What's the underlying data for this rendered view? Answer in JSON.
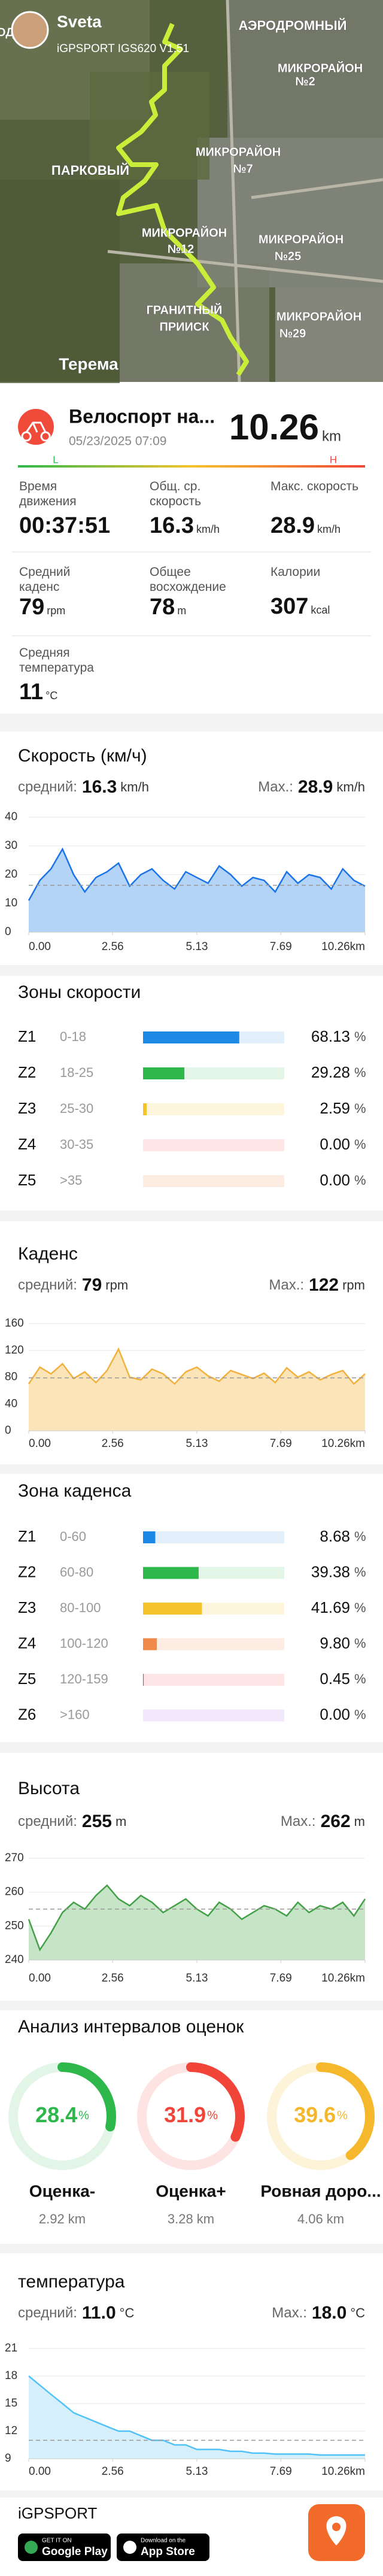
{
  "header": {
    "user": "Sveta",
    "device": "iGPSPORT IGS620 V1.51",
    "map_labels": [
      "ОДА",
      "АЭРОДРОМНЫЙ",
      "МИКРОРАЙОН",
      "№2",
      "ПАРКОВЫЙ",
      "МИКРОРАЙОН",
      "№7",
      "МИКРОРАЙОН",
      "№12",
      "МИКРОРАЙОН",
      "№25",
      "ГРАНИТНЫЙ",
      "ПРИИСК",
      "МИКРОРАЙОН",
      "№29",
      "Терема"
    ]
  },
  "activity": {
    "title": "Велоспорт на...",
    "date": "05/23/2025 07:09",
    "distance": "10.26",
    "distance_unit": "km",
    "scale_low": "L",
    "scale_high": "H"
  },
  "stats": [
    {
      "label": "Время движения",
      "value": "00:37:51",
      "unit": ""
    },
    {
      "label": "Общ. ср. скорость",
      "value": "16.3",
      "unit": "km/h"
    },
    {
      "label": "Макс. скорость",
      "value": "28.9",
      "unit": "km/h"
    },
    {
      "label": "Средний каденс",
      "value": "79",
      "unit": "rpm"
    },
    {
      "label": "Общее восхождение",
      "value": "78",
      "unit": "m"
    },
    {
      "label": "Калории",
      "value": "307",
      "unit": "kcal"
    },
    {
      "label": "Средняя температура",
      "value": "11",
      "unit": "°C"
    }
  ],
  "chart_data": [
    {
      "type": "area",
      "title": "Скорость (км/ч)",
      "color": "#1a73e8",
      "fill": "#b4d4f7",
      "avg_prefix": "средний:",
      "avg": 16.3,
      "avg_unit": "km/h",
      "max_prefix": "Max.:",
      "max": 28.9,
      "max_unit": "km/h",
      "x": [
        0,
        0.34,
        0.68,
        1.03,
        1.37,
        1.71,
        2.05,
        2.39,
        2.74,
        3.08,
        3.42,
        3.76,
        4.1,
        4.45,
        4.79,
        5.13,
        5.47,
        5.81,
        6.16,
        6.5,
        6.84,
        7.18,
        7.52,
        7.87,
        8.21,
        8.55,
        8.89,
        9.23,
        9.58,
        9.92,
        10.26
      ],
      "values": [
        11,
        18,
        22,
        28.9,
        20,
        14,
        19,
        21,
        24,
        16,
        20,
        22,
        18,
        15,
        21,
        19,
        17,
        23,
        20,
        16,
        19,
        18,
        14,
        21,
        17,
        20,
        19,
        15,
        22,
        18,
        16
      ],
      "xlim": [
        0,
        10.26
      ],
      "ylim": [
        0,
        40
      ],
      "yticks": [
        0,
        10,
        20,
        30,
        40
      ],
      "xticks": [
        {
          "value": 0,
          "label": "0.00"
        },
        2.56,
        5.13,
        7.69,
        {
          "value": 10.26,
          "label": "10.26km"
        }
      ]
    },
    {
      "type": "area",
      "title": "Каденс",
      "color": "#f2b03c",
      "fill": "#fbe5b8",
      "avg_prefix": "средний:",
      "avg": 79,
      "avg_unit": "rpm",
      "max_prefix": "Max.:",
      "max": 122,
      "max_unit": "rpm",
      "x": [
        0,
        0.34,
        0.68,
        1.03,
        1.37,
        1.71,
        2.05,
        2.39,
        2.74,
        3.08,
        3.42,
        3.76,
        4.1,
        4.45,
        4.79,
        5.13,
        5.47,
        5.81,
        6.16,
        6.5,
        6.84,
        7.18,
        7.52,
        7.87,
        8.21,
        8.55,
        8.89,
        9.23,
        9.58,
        9.92,
        10.26
      ],
      "values": [
        70,
        95,
        85,
        100,
        78,
        88,
        72,
        90,
        122,
        80,
        76,
        92,
        85,
        70,
        88,
        95,
        82,
        74,
        90,
        84,
        78,
        86,
        72,
        94,
        80,
        88,
        76,
        84,
        90,
        70,
        85
      ],
      "xlim": [
        0,
        10.26
      ],
      "ylim": [
        0,
        160
      ],
      "yticks": [
        0,
        40,
        80,
        120,
        160
      ],
      "xticks": [
        {
          "value": 0,
          "label": "0.00"
        },
        2.56,
        5.13,
        7.69,
        {
          "value": 10.26,
          "label": "10.26km"
        }
      ]
    },
    {
      "type": "area",
      "title": "Высота",
      "color": "#43a047",
      "fill": "#c5e5c6",
      "avg_prefix": "средний:",
      "avg": 255,
      "avg_unit": "m",
      "max_prefix": "Max.:",
      "max": 262,
      "max_unit": "m",
      "x": [
        0,
        0.34,
        0.68,
        1.03,
        1.37,
        1.71,
        2.05,
        2.39,
        2.74,
        3.08,
        3.42,
        3.76,
        4.1,
        4.45,
        4.79,
        5.13,
        5.47,
        5.81,
        6.16,
        6.5,
        6.84,
        7.18,
        7.52,
        7.87,
        8.21,
        8.55,
        8.89,
        9.23,
        9.58,
        9.92,
        10.26
      ],
      "values": [
        252,
        243,
        248,
        254,
        257,
        255,
        259,
        262,
        258,
        256,
        259,
        257,
        254,
        256,
        258,
        255,
        253,
        257,
        255,
        252,
        254,
        256,
        255,
        253,
        257,
        254,
        256,
        255,
        257,
        253,
        258
      ],
      "xlim": [
        0,
        10.26
      ],
      "ylim": [
        240,
        270
      ],
      "yticks": [
        240,
        250,
        260,
        270
      ],
      "xticks": [
        {
          "value": 0,
          "label": "0.00"
        },
        2.56,
        5.13,
        7.69,
        {
          "value": 10.26,
          "label": "10.26km"
        }
      ]
    },
    {
      "type": "area",
      "title": "температура",
      "color": "#4fc3f7",
      "fill": "#d6f0fb",
      "avg_prefix": "средний:",
      "avg": 11,
      "avg_label": "11.0",
      "avg_unit": "°C",
      "max_prefix": "Max.:",
      "max": 18,
      "max_label": "18.0",
      "max_unit": "°C",
      "x": [
        0,
        0.34,
        0.68,
        1.03,
        1.37,
        1.71,
        2.05,
        2.39,
        2.74,
        3.08,
        3.42,
        3.76,
        4.1,
        4.45,
        4.79,
        5.13,
        5.47,
        5.81,
        6.16,
        6.5,
        6.84,
        7.18,
        7.52,
        7.87,
        8.21,
        8.55,
        8.89,
        9.23,
        9.58,
        9.92,
        10.26
      ],
      "values": [
        18,
        17,
        16,
        15,
        14,
        13.5,
        13,
        12.5,
        12,
        12,
        11.5,
        11,
        11,
        10.5,
        10.5,
        10,
        10,
        10,
        9.8,
        9.8,
        9.6,
        9.6,
        9.5,
        9.5,
        9.5,
        9.5,
        9.4,
        9.4,
        9.4,
        9.4,
        9.4
      ],
      "xlim": [
        0,
        10.26
      ],
      "ylim": [
        9,
        21
      ],
      "yticks": [
        9,
        12,
        15,
        18,
        21
      ],
      "xticks": [
        {
          "value": 0,
          "label": "0.00"
        },
        2.56,
        5.13,
        7.69,
        {
          "value": 10.26,
          "label": "10.26km"
        }
      ]
    }
  ],
  "zones": [
    {
      "title": "Зоны скорости",
      "rows": [
        {
          "name": "Z1",
          "range": "0-18",
          "percent": 68.13,
          "percent_label": "68.13",
          "unit": "%",
          "color": "#1e88e5",
          "track": "#e3f0fc"
        },
        {
          "name": "Z2",
          "range": "18-25",
          "percent": 29.28,
          "percent_label": "29.28",
          "unit": "%",
          "color": "#2eb84b",
          "track": "#e3f5e6"
        },
        {
          "name": "Z3",
          "range": "25-30",
          "percent": 2.59,
          "percent_label": "2.59",
          "unit": "%",
          "color": "#f5c32c",
          "track": "#fdf5dc"
        },
        {
          "name": "Z4",
          "range": "30-35",
          "percent": 0,
          "percent_label": "0.00",
          "unit": "%",
          "color": "#f1605a",
          "track": "#fde6e5"
        },
        {
          "name": "Z5",
          "range": ">35",
          "percent": 0,
          "percent_label": "0.00",
          "unit": "%",
          "color": "#f08a4b",
          "track": "#fdece1"
        }
      ]
    },
    {
      "title": "Зона каденса",
      "rows": [
        {
          "name": "Z1",
          "range": "0-60",
          "percent": 8.68,
          "percent_label": "8.68",
          "unit": "%",
          "color": "#1e88e5",
          "track": "#e3f0fc"
        },
        {
          "name": "Z2",
          "range": "60-80",
          "percent": 39.38,
          "percent_label": "39.38",
          "unit": "%",
          "color": "#2eb84b",
          "track": "#e3f5e6"
        },
        {
          "name": "Z3",
          "range": "80-100",
          "percent": 41.69,
          "percent_label": "41.69",
          "unit": "%",
          "color": "#f5c32c",
          "track": "#fdf5dc"
        },
        {
          "name": "Z4",
          "range": "100-120",
          "percent": 9.8,
          "percent_label": "9.80",
          "unit": "%",
          "color": "#f08a4b",
          "track": "#fdece1"
        },
        {
          "name": "Z5",
          "range": "120-159",
          "percent": 0.45,
          "percent_label": "0.45",
          "unit": "%",
          "color": "#e53935",
          "track": "#fde6e5"
        },
        {
          "name": "Z6",
          "range": ">160",
          "percent": 0,
          "percent_label": "0.00",
          "unit": "%",
          "color": "#a86be0",
          "track": "#f1e8fb"
        }
      ]
    }
  ],
  "analysis": {
    "title": "Анализ интервалов оценок",
    "items": [
      {
        "percent": 28.4,
        "unit": "%",
        "label": "Оценка-",
        "distance": "2.92 km",
        "color": "#2eb84b",
        "track": "#e3f5e6"
      },
      {
        "percent": 31.9,
        "unit": "%",
        "label": "Оценка+",
        "distance": "3.28 km",
        "color": "#f1453a",
        "track": "#fde3e1"
      },
      {
        "percent": 39.6,
        "unit": "%",
        "label": "Ровная доро...",
        "distance": "4.06 km",
        "color": "#f5b72c",
        "track": "#fdf3d8"
      }
    ]
  },
  "footer": {
    "brand": "iGPSPORT",
    "google_small": "GET IT ON",
    "google": "Google Play",
    "apple_small": "Download on the",
    "apple": "App Store"
  }
}
